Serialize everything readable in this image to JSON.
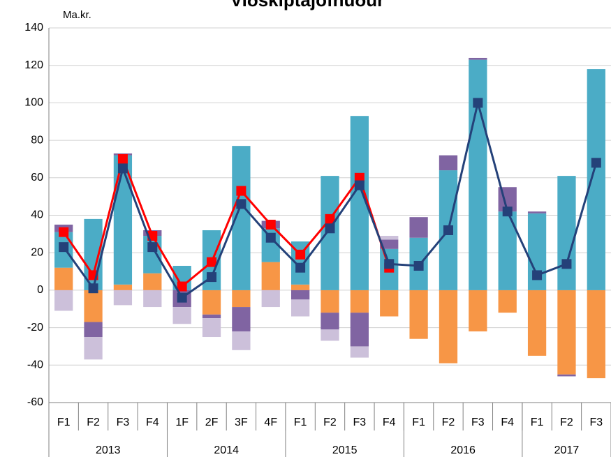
{
  "chart_data": {
    "type": "stacked-bar-line",
    "title": "Viðskiptajöfnuður",
    "ylabel": "Ma.kr.",
    "categories": [
      "F1",
      "F2",
      "F3",
      "F4",
      "1F",
      "2F",
      "3F",
      "4F",
      "F1",
      "F2",
      "F3",
      "F4",
      "F1",
      "F2",
      "F3",
      "F4",
      "F1",
      "F2",
      "F3"
    ],
    "groups": [
      {
        "name": "2013",
        "count": 4
      },
      {
        "name": "2014",
        "count": 4
      },
      {
        "name": "2015",
        "count": 4
      },
      {
        "name": "2016",
        "count": 4
      },
      {
        "name": "2017",
        "count": 3
      }
    ],
    "series": [
      {
        "color": "#f79646",
        "values": [
          12,
          -17,
          3,
          9,
          0,
          -13,
          -9,
          15,
          3,
          -12,
          -12,
          -14,
          -26,
          -39,
          -22,
          -12,
          -35,
          -45,
          -47
        ]
      },
      {
        "color": "#4bacc6",
        "values": [
          19,
          38,
          69,
          20,
          13,
          32,
          77,
          18,
          23,
          61,
          93,
          22,
          28,
          64,
          123,
          42,
          41,
          61,
          118
        ]
      },
      {
        "color": "#8064a2",
        "values": [
          4,
          -8,
          1,
          3,
          -9,
          -2,
          -13,
          4,
          -5,
          -9,
          -18,
          5,
          11,
          8,
          1,
          13,
          1,
          -1,
          0
        ]
      },
      {
        "color": "#ccc0da",
        "values": [
          -11,
          -12,
          -8,
          -9,
          -9,
          -10,
          -10,
          -9,
          -9,
          -6,
          -6,
          2,
          0,
          0,
          0,
          0,
          0,
          0,
          0
        ]
      }
    ],
    "lines": [
      {
        "color": "#ff0000",
        "values": [
          31,
          8,
          70,
          29,
          2,
          15,
          53,
          35,
          19,
          38,
          60,
          12,
          null,
          null,
          null,
          null,
          null,
          null,
          null
        ]
      },
      {
        "color": "#244179",
        "values": [
          23,
          1,
          65,
          23,
          -4,
          7,
          46,
          28,
          12,
          33,
          56,
          14,
          13,
          32,
          100,
          42,
          8,
          14,
          68
        ]
      }
    ],
    "ylim": [
      -60,
      140
    ],
    "yticks": [
      -60,
      -40,
      -20,
      0,
      20,
      40,
      60,
      80,
      100,
      120,
      140
    ],
    "grid": true
  }
}
